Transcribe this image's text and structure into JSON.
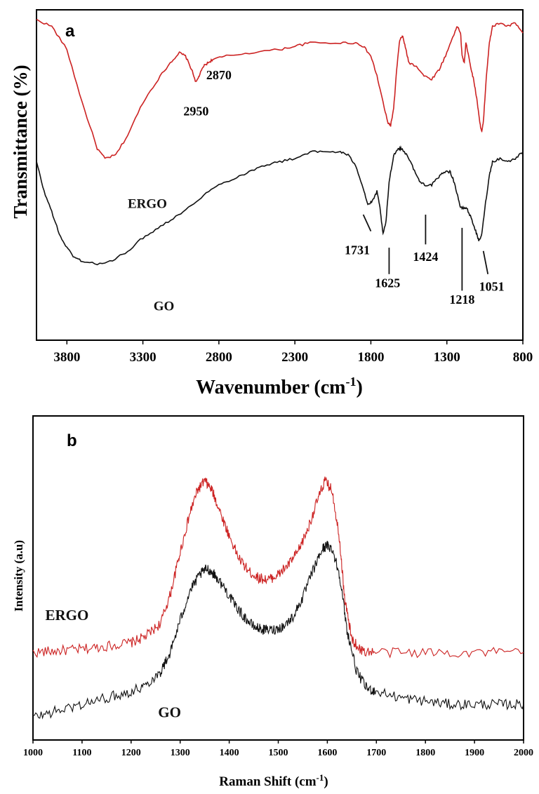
{
  "chart_data": [
    {
      "type": "line",
      "panel_label": "a",
      "xlabel_main": "Wavenumber (cm",
      "xlabel_sup": "-1",
      "xlabel_end": ")",
      "ylabel": "Transmittance (%)",
      "xlim": [
        4000,
        800
      ],
      "x_reversed": true,
      "ylim": [
        0,
        100
      ],
      "y_ticks_shown": false,
      "x_ticks": [
        3800,
        3300,
        2800,
        2300,
        1800,
        1300,
        800
      ],
      "colors": {
        "ERGO": "#cc2222",
        "GO": "#111111"
      },
      "series": [
        {
          "name": "ERGO",
          "label_pos": [
            3400,
            40
          ],
          "points": [
            [
              4000,
              97
            ],
            [
              3900,
              95
            ],
            [
              3800,
              88
            ],
            [
              3700,
              72
            ],
            [
              3600,
              58
            ],
            [
              3550,
              55
            ],
            [
              3480,
              56
            ],
            [
              3400,
              62
            ],
            [
              3300,
              72
            ],
            [
              3200,
              79
            ],
            [
              3120,
              84
            ],
            [
              3060,
              87
            ],
            [
              3020,
              86
            ],
            [
              2980,
              82
            ],
            [
              2950,
              78
            ],
            [
              2930,
              80
            ],
            [
              2900,
              83
            ],
            [
              2870,
              84
            ],
            [
              2840,
              85
            ],
            [
              2750,
              86
            ],
            [
              2600,
              87
            ],
            [
              2400,
              88
            ],
            [
              2300,
              89
            ],
            [
              2200,
              90
            ],
            [
              2000,
              90
            ],
            [
              1900,
              90
            ],
            [
              1850,
              89
            ],
            [
              1800,
              86
            ],
            [
              1760,
              80
            ],
            [
              1720,
              72
            ],
            [
              1690,
              66
            ],
            [
              1670,
              65
            ],
            [
              1650,
              70
            ],
            [
              1630,
              82
            ],
            [
              1610,
              91
            ],
            [
              1590,
              92
            ],
            [
              1570,
              88
            ],
            [
              1550,
              84
            ],
            [
              1500,
              83
            ],
            [
              1450,
              80
            ],
            [
              1400,
              79
            ],
            [
              1350,
              82
            ],
            [
              1300,
              87
            ],
            [
              1260,
              92
            ],
            [
              1230,
              95
            ],
            [
              1210,
              93
            ],
            [
              1200,
              86
            ],
            [
              1185,
              84
            ],
            [
              1175,
              90
            ],
            [
              1160,
              87
            ],
            [
              1140,
              82
            ],
            [
              1120,
              78
            ],
            [
              1100,
              72
            ],
            [
              1080,
              65
            ],
            [
              1070,
              63
            ],
            [
              1060,
              66
            ],
            [
              1040,
              80
            ],
            [
              1020,
              90
            ],
            [
              1000,
              95
            ],
            [
              950,
              96
            ],
            [
              900,
              95
            ],
            [
              850,
              96
            ],
            [
              800,
              93
            ]
          ]
        },
        {
          "name": "GO",
          "label_pos": [
            3230,
            9
          ],
          "points": [
            [
              4000,
              54
            ],
            [
              3950,
              45
            ],
            [
              3900,
              39
            ],
            [
              3850,
              32
            ],
            [
              3800,
              28
            ],
            [
              3750,
              25
            ],
            [
              3700,
              24
            ],
            [
              3600,
              23
            ],
            [
              3500,
              24
            ],
            [
              3400,
              27
            ],
            [
              3300,
              31
            ],
            [
              3200,
              34
            ],
            [
              3100,
              37
            ],
            [
              3000,
              40
            ],
            [
              2900,
              44
            ],
            [
              2800,
              47
            ],
            [
              2700,
              49
            ],
            [
              2600,
              51
            ],
            [
              2500,
              53
            ],
            [
              2400,
              54
            ],
            [
              2300,
              55
            ],
            [
              2200,
              57
            ],
            [
              2100,
              57
            ],
            [
              2000,
              57
            ],
            [
              1950,
              56
            ],
            [
              1900,
              53
            ],
            [
              1850,
              46
            ],
            [
              1820,
              41
            ],
            [
              1790,
              42
            ],
            [
              1760,
              45
            ],
            [
              1740,
              40
            ],
            [
              1720,
              32
            ],
            [
              1700,
              36
            ],
            [
              1680,
              48
            ],
            [
              1650,
              56
            ],
            [
              1620,
              58
            ],
            [
              1600,
              58
            ],
            [
              1560,
              56
            ],
            [
              1520,
              52
            ],
            [
              1480,
              48
            ],
            [
              1440,
              47
            ],
            [
              1400,
              47
            ],
            [
              1360,
              49
            ],
            [
              1320,
              51
            ],
            [
              1280,
              51
            ],
            [
              1260,
              49
            ],
            [
              1230,
              44
            ],
            [
              1210,
              40
            ],
            [
              1190,
              40
            ],
            [
              1170,
              40
            ],
            [
              1140,
              37
            ],
            [
              1110,
              33
            ],
            [
              1090,
              30
            ],
            [
              1070,
              32
            ],
            [
              1050,
              40
            ],
            [
              1020,
              50
            ],
            [
              1000,
              54
            ],
            [
              950,
              55
            ],
            [
              900,
              54
            ],
            [
              850,
              55
            ],
            [
              800,
              57
            ]
          ]
        }
      ],
      "annotations": [
        {
          "text": "2950",
          "x": 2950,
          "y": 68
        },
        {
          "text": "2870",
          "x": 2800,
          "y": 79
        },
        {
          "text": "1731",
          "x": 1890,
          "y": 26
        },
        {
          "text": "1625",
          "x": 1690,
          "y": 16
        },
        {
          "text": "1424",
          "x": 1440,
          "y": 24
        },
        {
          "text": "1218",
          "x": 1200,
          "y": 11
        },
        {
          "text": "1051",
          "x": 1005,
          "y": 15
        }
      ]
    },
    {
      "type": "line",
      "panel_label": "b",
      "xlabel_main": "Raman Shift (cm",
      "xlabel_sup": "-1",
      "xlabel_end": ")",
      "ylabel": "Intensity (a.u)",
      "xlim": [
        1000,
        2000
      ],
      "ylim": [
        0,
        100
      ],
      "y_ticks_shown": false,
      "x_ticks": [
        1000,
        1100,
        1200,
        1300,
        1400,
        1500,
        1600,
        1700,
        1800,
        1900,
        2000
      ],
      "colors": {
        "ERGO": "#cc2222",
        "GO": "#111111"
      },
      "series": [
        {
          "name": "ERGO",
          "label_pos": [
            1025,
            37
          ],
          "points": [
            [
              1000,
              27
            ],
            [
              1050,
              27.5
            ],
            [
              1100,
              28
            ],
            [
              1150,
              29
            ],
            [
              1200,
              30
            ],
            [
              1230,
              32
            ],
            [
              1260,
              36
            ],
            [
              1280,
              45
            ],
            [
              1300,
              58
            ],
            [
              1320,
              70
            ],
            [
              1335,
              77
            ],
            [
              1350,
              80
            ],
            [
              1365,
              77
            ],
            [
              1380,
              71
            ],
            [
              1400,
              63
            ],
            [
              1420,
              56
            ],
            [
              1440,
              52
            ],
            [
              1460,
              50
            ],
            [
              1480,
              49.5
            ],
            [
              1500,
              51
            ],
            [
              1520,
              54
            ],
            [
              1540,
              58
            ],
            [
              1560,
              65
            ],
            [
              1580,
              74
            ],
            [
              1595,
              80
            ],
            [
              1610,
              77
            ],
            [
              1625,
              62
            ],
            [
              1635,
              44
            ],
            [
              1650,
              31
            ],
            [
              1670,
              27.5
            ],
            [
              1700,
              27
            ],
            [
              1800,
              27
            ],
            [
              1900,
              27
            ],
            [
              2000,
              27
            ]
          ]
        },
        {
          "name": "GO",
          "label_pos": [
            1255,
            7
          ],
          "points": [
            [
              1000,
              7
            ],
            [
              1050,
              9
            ],
            [
              1100,
              11
            ],
            [
              1150,
              13
            ],
            [
              1200,
              15
            ],
            [
              1230,
              17
            ],
            [
              1260,
              21
            ],
            [
              1280,
              27
            ],
            [
              1300,
              37
            ],
            [
              1320,
              46
            ],
            [
              1340,
              51
            ],
            [
              1355,
              53
            ],
            [
              1370,
              51
            ],
            [
              1390,
              47
            ],
            [
              1410,
              42
            ],
            [
              1430,
              38
            ],
            [
              1450,
              35
            ],
            [
              1470,
              34
            ],
            [
              1490,
              34
            ],
            [
              1510,
              35
            ],
            [
              1530,
              38
            ],
            [
              1550,
              44
            ],
            [
              1570,
              52
            ],
            [
              1590,
              59
            ],
            [
              1600,
              60
            ],
            [
              1610,
              59
            ],
            [
              1625,
              51
            ],
            [
              1640,
              34
            ],
            [
              1660,
              21
            ],
            [
              1680,
              16
            ],
            [
              1700,
              15
            ],
            [
              1750,
              13
            ],
            [
              1800,
              12
            ],
            [
              1850,
              11
            ],
            [
              1900,
              11
            ],
            [
              1950,
              11
            ],
            [
              2000,
              11
            ]
          ]
        }
      ]
    }
  ]
}
